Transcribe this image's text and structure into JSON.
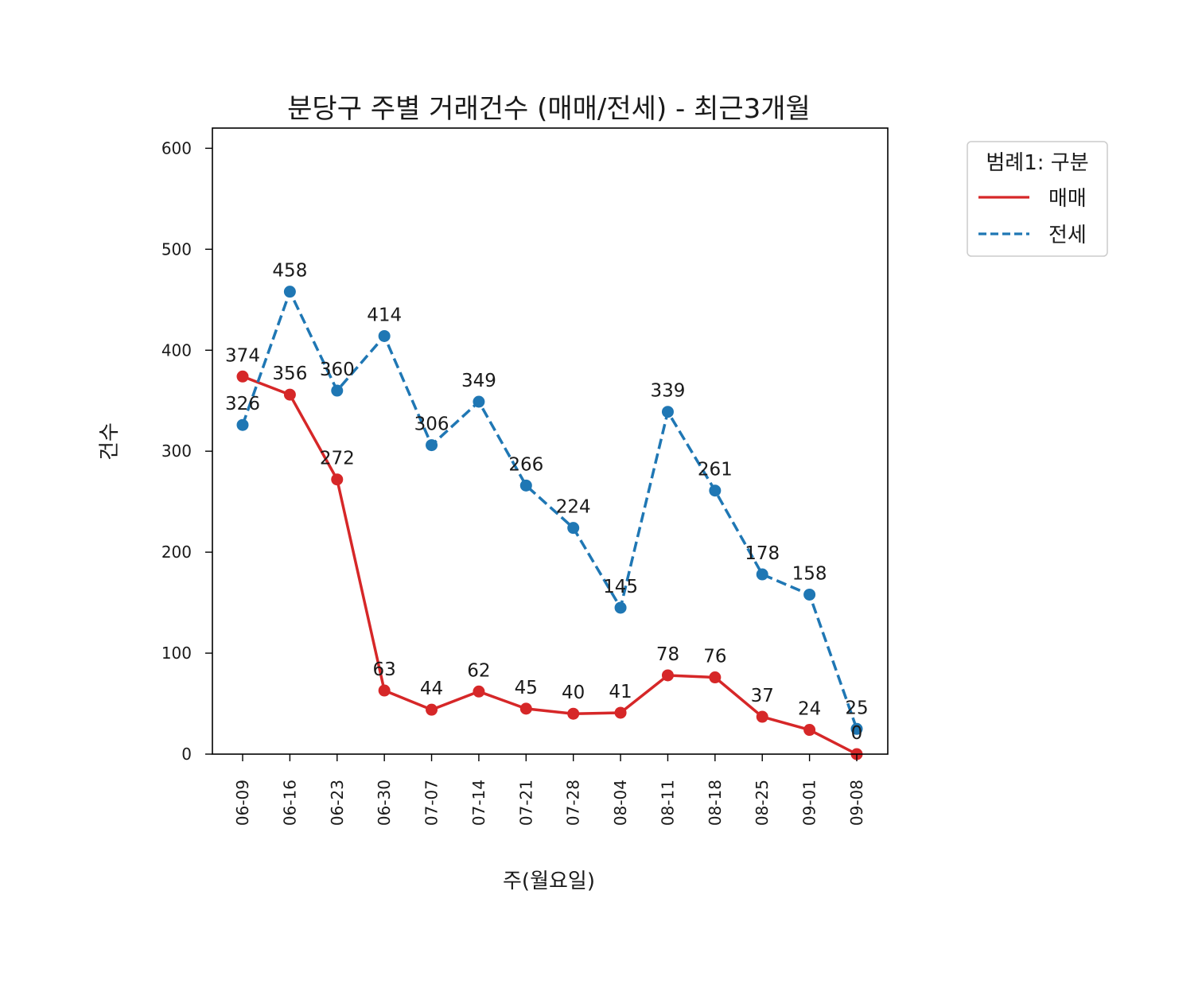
{
  "chart_data": {
    "type": "line",
    "title": "분당구 주별 거래건수 (매매/전세) - 최근3개월",
    "xlabel": "주(월요일)",
    "ylabel": "건수",
    "categories": [
      "06-09",
      "06-16",
      "06-23",
      "06-30",
      "07-07",
      "07-14",
      "07-21",
      "07-28",
      "08-04",
      "08-11",
      "08-18",
      "08-25",
      "09-01",
      "09-08"
    ],
    "ylim": [
      0,
      620
    ],
    "yticks": [
      0,
      100,
      200,
      300,
      400,
      500,
      600
    ],
    "grid": false,
    "legend": {
      "title": "범례1: 구분",
      "placement": "outside-top-right"
    },
    "series": [
      {
        "name": "매매",
        "color": "#d62728",
        "style": "solid",
        "values": [
          374,
          356,
          272,
          63,
          44,
          62,
          45,
          40,
          41,
          78,
          76,
          37,
          24,
          0
        ]
      },
      {
        "name": "전세",
        "color": "#1f77b4",
        "style": "dashed",
        "values": [
          326,
          458,
          360,
          414,
          306,
          349,
          266,
          224,
          145,
          339,
          261,
          178,
          158,
          25
        ]
      }
    ]
  }
}
